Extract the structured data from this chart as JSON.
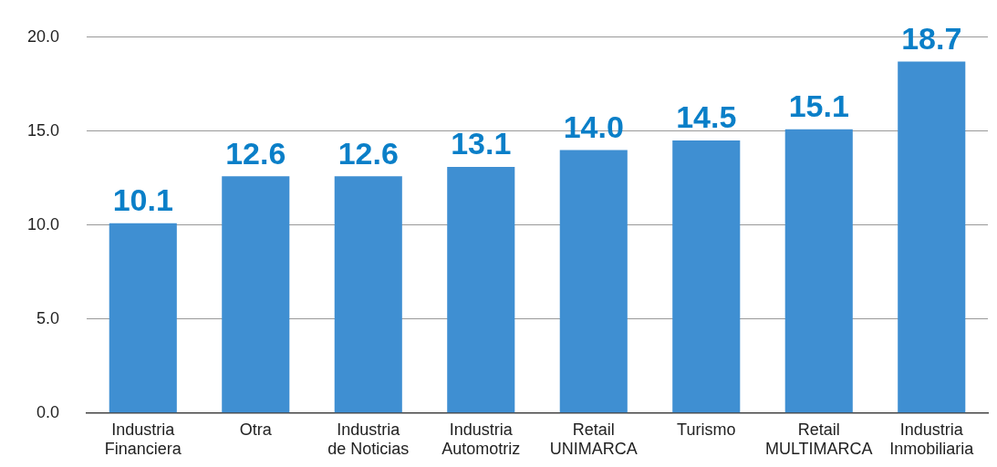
{
  "chart_data": {
    "type": "bar",
    "categories": [
      "Industria\nFinanciera",
      "Otra",
      "Industria\nde Noticias",
      "Industria\nAutomotriz",
      "Retail\nUNIMARCA",
      "Turismo",
      "Retail\nMULTIMARCA",
      "Industria\nInmobiliaria"
    ],
    "values": [
      10.1,
      12.6,
      12.6,
      13.1,
      14.0,
      14.5,
      15.1,
      18.7
    ],
    "value_labels": [
      "10.1",
      "12.6",
      "12.6",
      "13.1",
      "14.0",
      "14.5",
      "15.1",
      "18.7"
    ],
    "color": "#3f8fd2",
    "ylim": [
      0,
      20
    ],
    "yticks": [
      {
        "value": 0,
        "label": "0.0"
      },
      {
        "value": 5,
        "label": "5.0"
      },
      {
        "value": 10,
        "label": "10.0"
      },
      {
        "value": 15,
        "label": "15.0"
      },
      {
        "value": 20,
        "label": "20.0"
      }
    ],
    "grid": "y"
  }
}
